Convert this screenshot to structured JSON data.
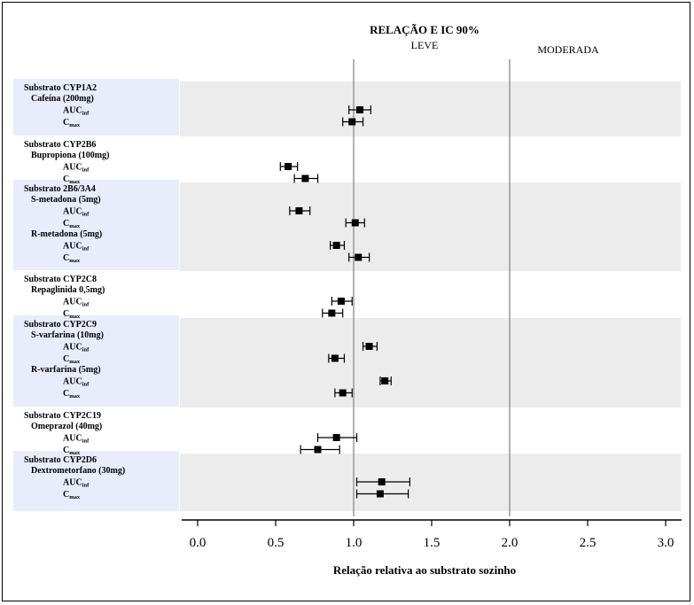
{
  "chart_data": {
    "type": "scatter",
    "title": "RELAÇÃO E IC 90%",
    "xlabel": "Relação relativa ao substrato sozinho",
    "xlim": [
      -0.1,
      3.1
    ],
    "xticks": [
      "0.0",
      "0.5",
      "1.0",
      "1.5",
      "2.0",
      "2.5",
      "3.0"
    ],
    "xtick_values": [
      0.0,
      0.5,
      1.0,
      1.5,
      2.0,
      2.5,
      3.0
    ],
    "reference_lines": [
      {
        "x": 1.0,
        "label": "LEVE"
      },
      {
        "x": 2.0,
        "label": "MODERADA"
      }
    ],
    "grid": false,
    "groups": [
      {
        "substrate": "Substrato CYP1A2",
        "drugs": [
          {
            "name": "Cafeína (200mg)",
            "points": [
              {
                "param": "AUC",
                "sub": "inf",
                "ratio": 1.04,
                "lo": 0.97,
                "hi": 1.11
              },
              {
                "param": "C",
                "sub": "max",
                "ratio": 0.99,
                "lo": 0.93,
                "hi": 1.06
              }
            ]
          }
        ]
      },
      {
        "substrate": "Substrato CYP2B6",
        "drugs": [
          {
            "name": "Bupropiona (100mg)",
            "points": [
              {
                "param": "AUC",
                "sub": "inf",
                "ratio": 0.58,
                "lo": 0.53,
                "hi": 0.64
              },
              {
                "param": "C",
                "sub": "max",
                "ratio": 0.69,
                "lo": 0.62,
                "hi": 0.77
              }
            ]
          }
        ]
      },
      {
        "substrate": "Substrato 2B6/3A4",
        "drugs": [
          {
            "name": "S-metadona (5mg)",
            "points": [
              {
                "param": "AUC",
                "sub": "inf",
                "ratio": 0.65,
                "lo": 0.59,
                "hi": 0.72
              },
              {
                "param": "C",
                "sub": "max",
                "ratio": 1.01,
                "lo": 0.95,
                "hi": 1.07
              }
            ]
          },
          {
            "name": "R-metadona (5mg)",
            "points": [
              {
                "param": "AUC",
                "sub": "inf",
                "ratio": 0.89,
                "lo": 0.85,
                "hi": 0.94
              },
              {
                "param": "C",
                "sub": "max",
                "ratio": 1.03,
                "lo": 0.97,
                "hi": 1.1
              }
            ]
          }
        ]
      },
      {
        "substrate": "Substrato CYP2C8",
        "drugs": [
          {
            "name": "Repaglinida  0,5mg)",
            "points": [
              {
                "param": "AUC",
                "sub": "inf",
                "ratio": 0.92,
                "lo": 0.86,
                "hi": 0.99
              },
              {
                "param": "C",
                "sub": "max",
                "ratio": 0.86,
                "lo": 0.8,
                "hi": 0.93
              }
            ]
          }
        ]
      },
      {
        "substrate": "Substrato CYP2C9",
        "drugs": [
          {
            "name": "S-varfarina (10mg)",
            "points": [
              {
                "param": "AUC",
                "sub": "inf",
                "ratio": 1.1,
                "lo": 1.06,
                "hi": 1.15
              },
              {
                "param": "C",
                "sub": "max",
                "ratio": 0.88,
                "lo": 0.84,
                "hi": 0.94
              }
            ]
          },
          {
            "name": "R-varfarina (5mg)",
            "points": [
              {
                "param": "AUC",
                "sub": "inf",
                "ratio": 1.2,
                "lo": 1.17,
                "hi": 1.24
              },
              {
                "param": "C",
                "sub": "max",
                "ratio": 0.93,
                "lo": 0.88,
                "hi": 0.99
              }
            ]
          }
        ]
      },
      {
        "substrate": "Substrato CYP2C19",
        "drugs": [
          {
            "name": "Omeprazol (40mg)",
            "points": [
              {
                "param": "AUC",
                "sub": "inf",
                "ratio": 0.89,
                "lo": 0.77,
                "hi": 1.02
              },
              {
                "param": "C",
                "sub": "max",
                "ratio": 0.77,
                "lo": 0.66,
                "hi": 0.91
              }
            ]
          }
        ]
      },
      {
        "substrate": "Substrato CYP2D6",
        "drugs": [
          {
            "name": "Dextrometorfano (30mg)",
            "points": [
              {
                "param": "AUC",
                "sub": "inf",
                "ratio": 1.18,
                "lo": 1.02,
                "hi": 1.36
              },
              {
                "param": "C",
                "sub": "max",
                "ratio": 1.17,
                "lo": 1.02,
                "hi": 1.35
              }
            ]
          }
        ]
      }
    ]
  }
}
